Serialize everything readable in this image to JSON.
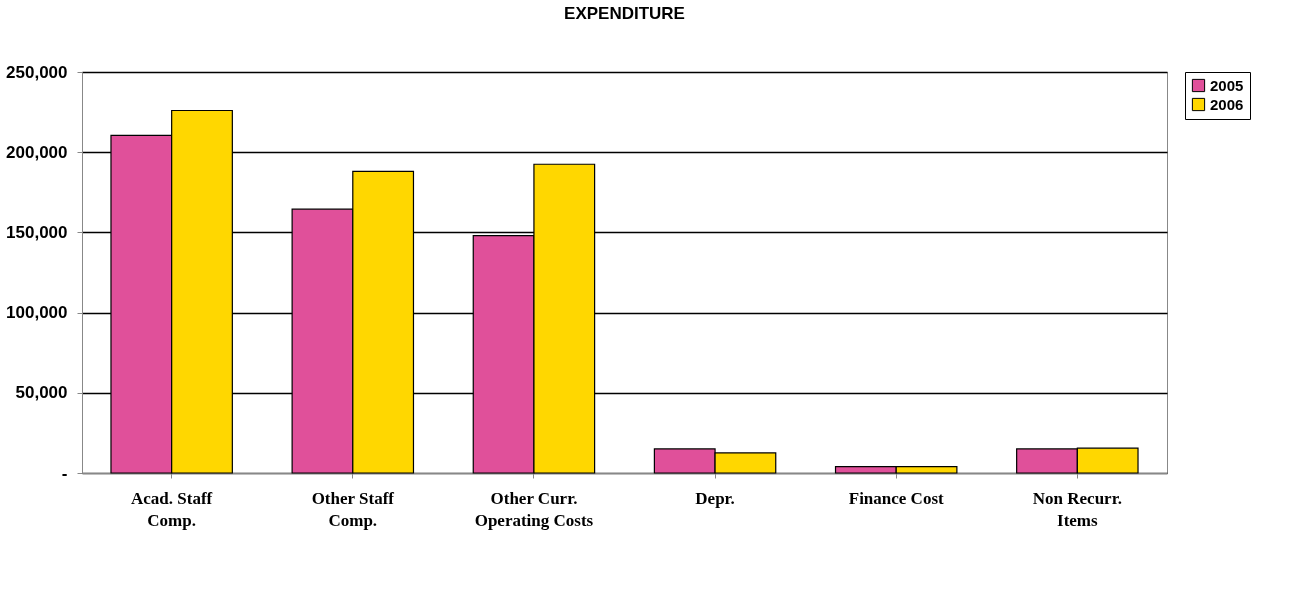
{
  "chart_data": {
    "type": "bar",
    "title": "EXPENDITURE",
    "categories": [
      "Acad. Staff Comp.",
      "Other Staff Comp.",
      "Other Curr. Operating Costs",
      "Depr.",
      "Finance Cost",
      "Non Recurr. Items"
    ],
    "series": [
      {
        "name": "2005",
        "color": "#e0509a",
        "values": [
          210500,
          164500,
          148000,
          15000,
          4000,
          15000
        ]
      },
      {
        "name": "2006",
        "color": "#ffd700",
        "values": [
          226000,
          188000,
          192500,
          12500,
          4000,
          15500
        ]
      }
    ],
    "ylim": [
      0,
      250000
    ],
    "yticks": [
      {
        "value": 0,
        "label": "-"
      },
      {
        "value": 50000,
        "label": "50,000"
      },
      {
        "value": 100000,
        "label": "100,000"
      },
      {
        "value": 150000,
        "label": "150,000"
      },
      {
        "value": 200000,
        "label": "200,000"
      },
      {
        "value": 250000,
        "label": "250,000"
      }
    ],
    "grid": "y",
    "legend": "right"
  }
}
